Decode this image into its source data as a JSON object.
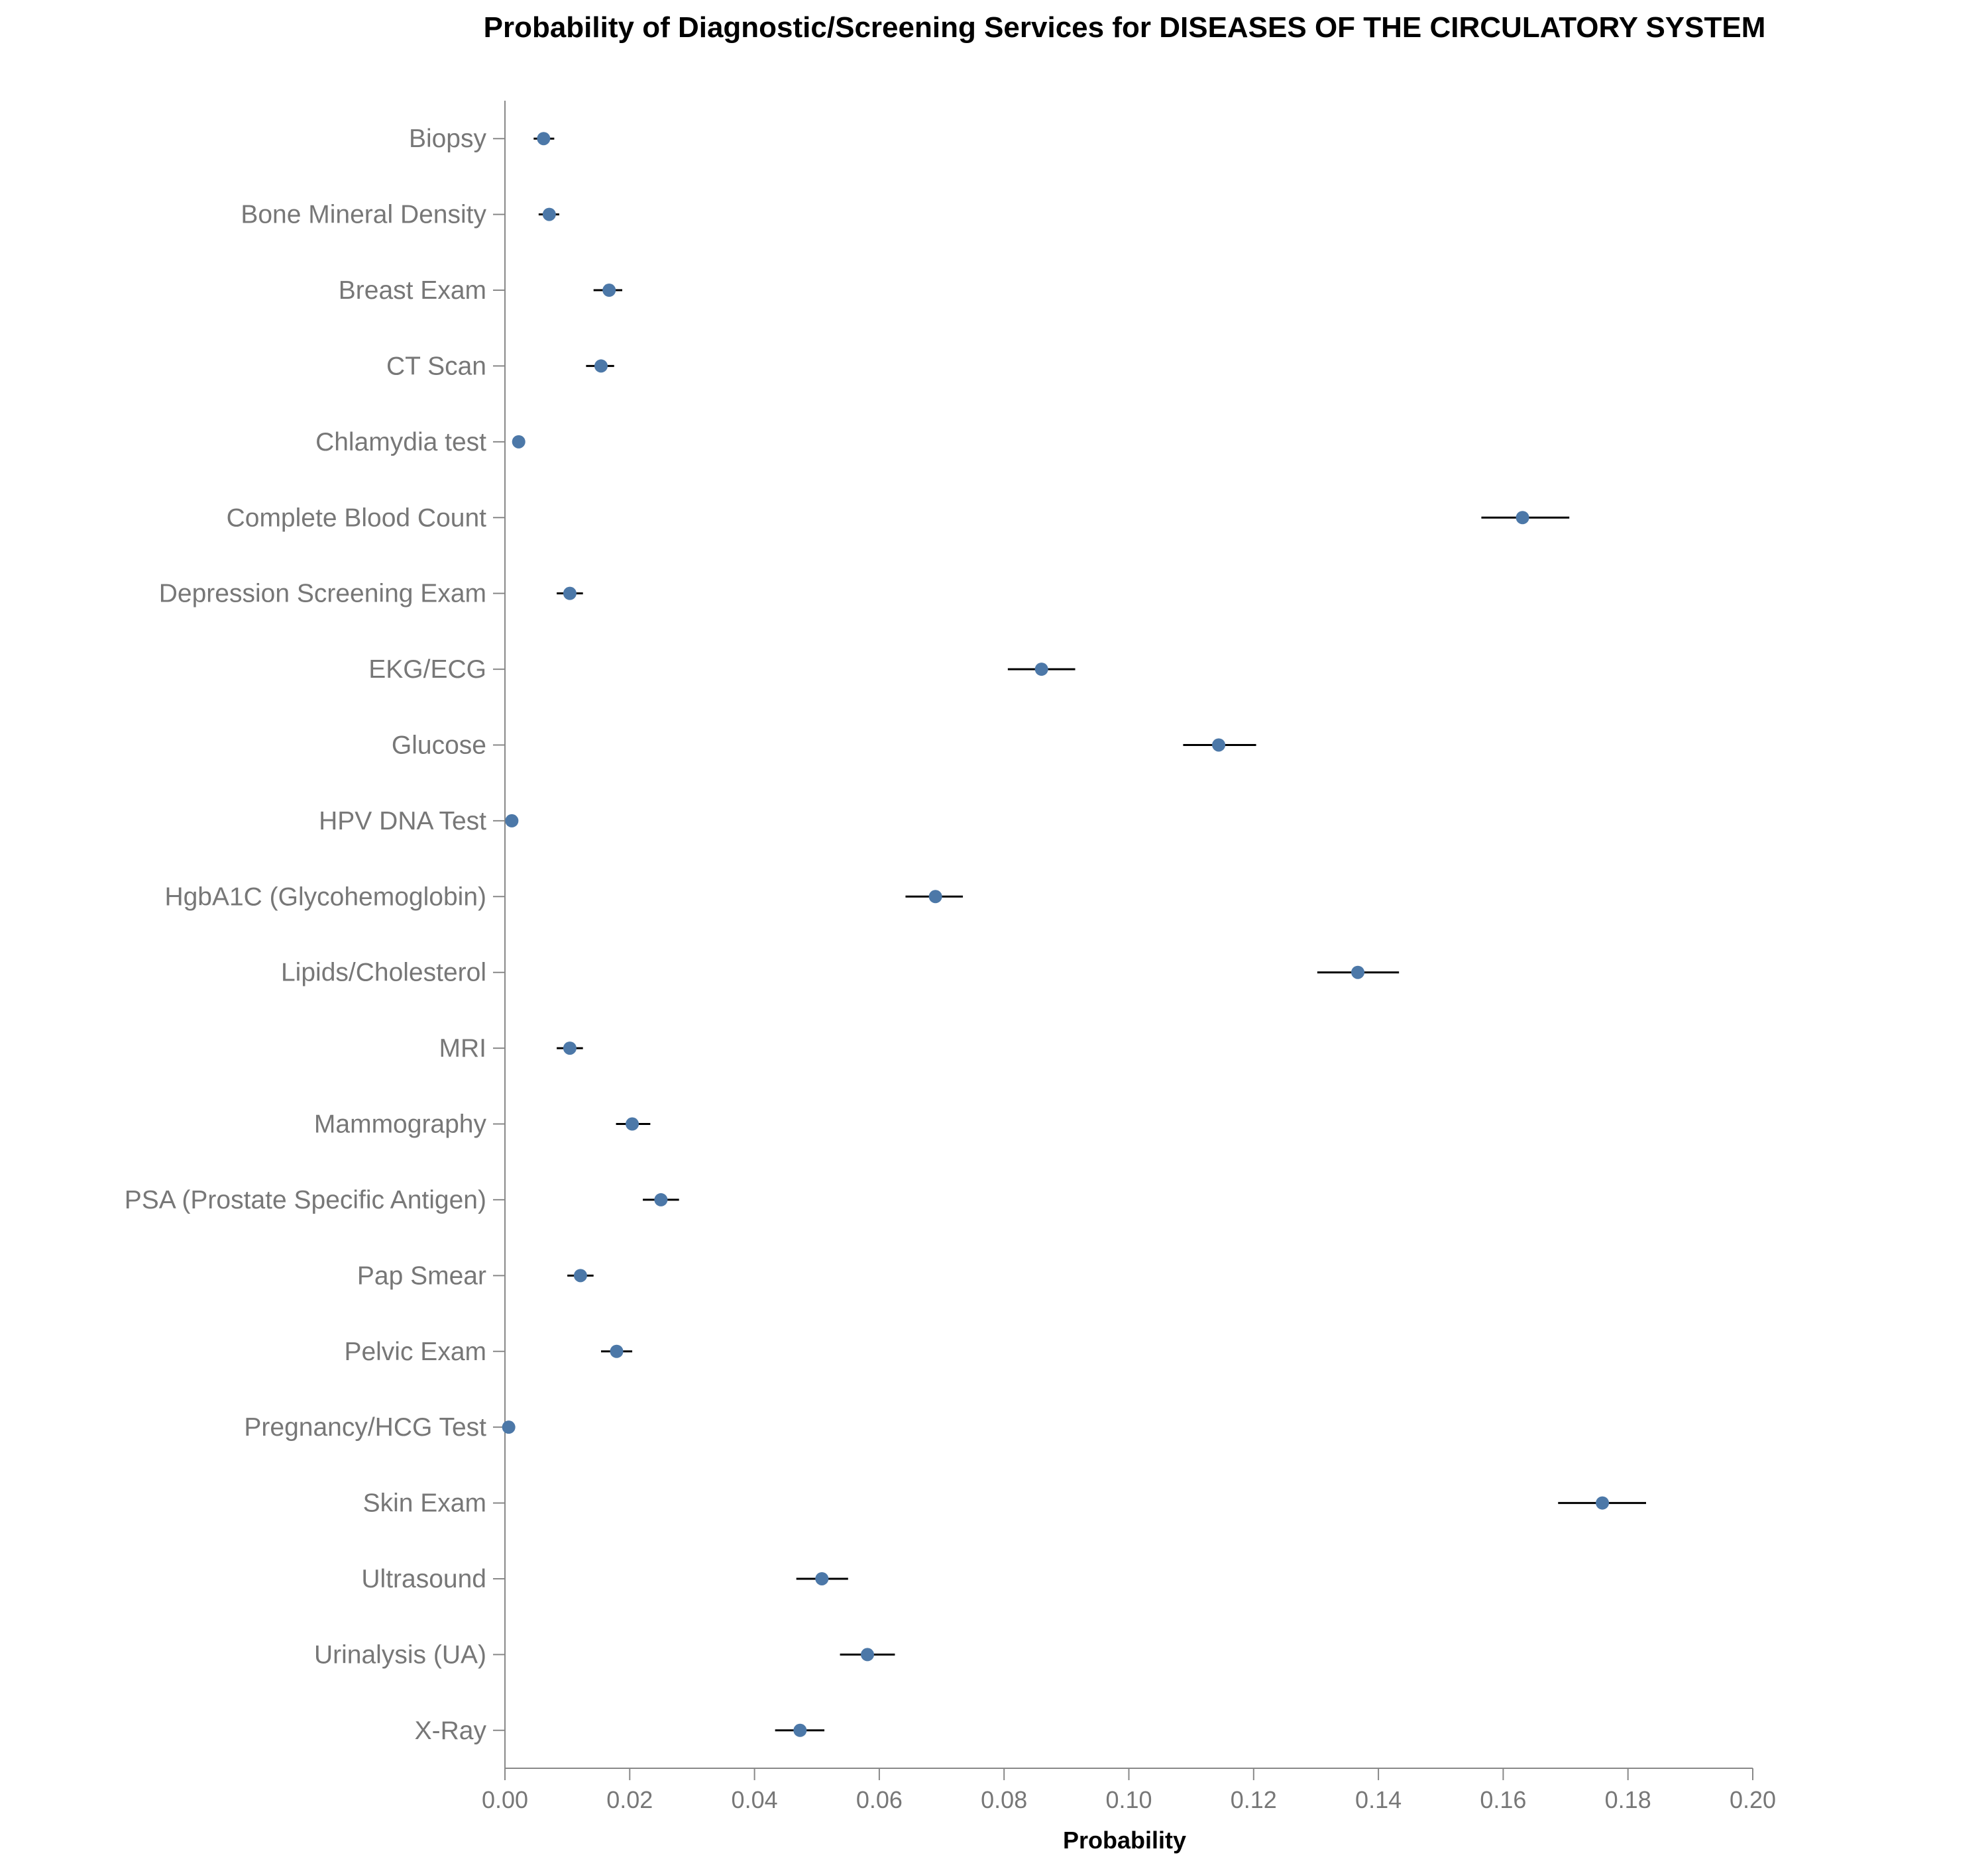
{
  "chart_data": {
    "type": "scatter",
    "title": "Probability of Diagnostic/Screening Services for DISEASES OF THE CIRCULATORY SYSTEM",
    "xlabel": "Probability",
    "ylabel": "",
    "xlim": [
      0,
      0.2
    ],
    "x_ticks": [
      "0.00",
      "0.02",
      "0.04",
      "0.06",
      "0.08",
      "0.10",
      "0.12",
      "0.14",
      "0.16",
      "0.18",
      "0.20"
    ],
    "x_tick_values": [
      0,
      0.02,
      0.04,
      0.06,
      0.08,
      0.1,
      0.12,
      0.14,
      0.16,
      0.18,
      0.2
    ],
    "grid": false,
    "error_bars": true,
    "point_color": "#4c78a8",
    "error_bar_color": "#000000",
    "categories": [
      "Biopsy",
      "Bone Mineral Density",
      "Breast Exam",
      "CT Scan",
      "Chlamydia test",
      "Complete Blood Count",
      "Depression Screening Exam",
      "EKG/ECG",
      "Glucose",
      "HPV DNA Test",
      "HgbA1C (Glycohemoglobin)",
      "Lipids/Cholesterol",
      "MRI",
      "Mammography",
      "PSA (Prostate Specific Antigen)",
      "Pap Smear",
      "Pelvic Exam",
      "Pregnancy/HCG Test",
      "Skin Exam",
      "Ultrasound",
      "Urinalysis (UA)",
      "X-Ray"
    ],
    "values": [
      0.0062,
      0.0071,
      0.0167,
      0.0154,
      0.0022,
      0.1631,
      0.0104,
      0.086,
      0.1144,
      0.0011,
      0.069,
      0.1367,
      0.0104,
      0.0204,
      0.025,
      0.0121,
      0.0179,
      0.0006,
      0.1759,
      0.0508,
      0.0581,
      0.0473
    ],
    "lower": [
      0.0046,
      0.0054,
      0.0142,
      0.013,
      0.0016,
      0.1565,
      0.0083,
      0.0806,
      0.1087,
      0.0006,
      0.0642,
      0.1302,
      0.0083,
      0.0178,
      0.0221,
      0.01,
      0.0154,
      0.0002,
      0.1688,
      0.0467,
      0.0537,
      0.0433
    ],
    "upper": [
      0.0079,
      0.0087,
      0.0188,
      0.0175,
      0.0027,
      0.1706,
      0.0125,
      0.0914,
      0.1204,
      0.0015,
      0.0734,
      0.1433,
      0.0125,
      0.0233,
      0.0279,
      0.0142,
      0.0204,
      0.001,
      0.1829,
      0.055,
      0.0625,
      0.0512
    ]
  }
}
